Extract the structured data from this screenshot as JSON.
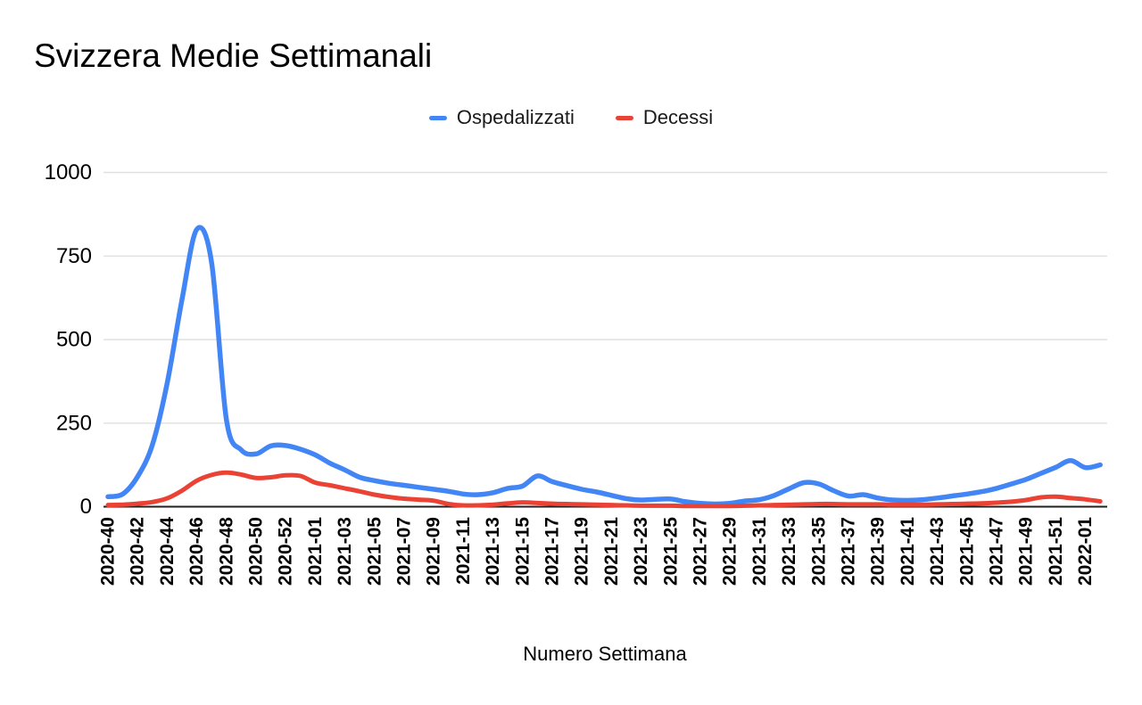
{
  "chart": {
    "title": "Svizzera Medie Settimanali",
    "legend": [
      {
        "label": "Ospedalizzati",
        "color": "#4285F4"
      },
      {
        "label": "Decessi",
        "color": "#EA4335"
      }
    ]
  },
  "chart_data": {
    "type": "line",
    "title": "Svizzera Medie Settimanali",
    "xlabel": "Numero Settimana",
    "ylabel": "",
    "ylim": [
      0,
      1000
    ],
    "y_ticks": [
      0,
      250,
      500,
      750,
      1000
    ],
    "x_label_every": 2,
    "smooth": true,
    "grid": "horizontal",
    "legend_position": "top-center",
    "axis_color": "#212121",
    "gridline_color": "#e0e0e0",
    "categories": [
      "2020-40",
      "2020-41",
      "2020-42",
      "2020-43",
      "2020-44",
      "2020-45",
      "2020-46",
      "2020-47",
      "2020-48",
      "2020-49",
      "2020-50",
      "2020-51",
      "2020-52",
      "2020-53",
      "2021-01",
      "2021-02",
      "2021-03",
      "2021-04",
      "2021-05",
      "2021-06",
      "2021-07",
      "2021-08",
      "2021-09",
      "2021-10",
      "2021-11",
      "2021-12",
      "2021-13",
      "2021-14",
      "2021-15",
      "2021-16",
      "2021-17",
      "2021-18",
      "2021-19",
      "2021-20",
      "2021-21",
      "2021-22",
      "2021-23",
      "2021-24",
      "2021-25",
      "2021-26",
      "2021-27",
      "2021-28",
      "2021-29",
      "2021-30",
      "2021-31",
      "2021-32",
      "2021-33",
      "2021-34",
      "2021-35",
      "2021-36",
      "2021-37",
      "2021-38",
      "2021-39",
      "2021-40",
      "2021-41",
      "2021-42",
      "2021-43",
      "2021-44",
      "2021-45",
      "2021-46",
      "2021-47",
      "2021-48",
      "2021-49",
      "2021-50",
      "2021-51",
      "2021-52",
      "2022-01",
      "2022-02"
    ],
    "series": [
      {
        "name": "Ospedalizzati",
        "color": "#4285F4",
        "stroke_width": 5.5,
        "values": [
          30,
          38,
          90,
          185,
          370,
          620,
          830,
          730,
          260,
          170,
          158,
          182,
          183,
          172,
          155,
          130,
          110,
          88,
          78,
          70,
          64,
          58,
          52,
          46,
          38,
          36,
          42,
          55,
          62,
          92,
          75,
          63,
          52,
          44,
          34,
          24,
          20,
          22,
          23,
          15,
          10,
          8,
          10,
          17,
          21,
          34,
          54,
          72,
          68,
          48,
          32,
          36,
          26,
          20,
          19,
          21,
          26,
          32,
          38,
          45,
          55,
          68,
          82,
          100,
          118,
          138,
          117,
          125
        ]
      },
      {
        "name": "Decessi",
        "color": "#EA4335",
        "stroke_width": 5,
        "values": [
          5,
          6,
          9,
          14,
          25,
          48,
          78,
          95,
          102,
          96,
          86,
          88,
          94,
          92,
          72,
          64,
          55,
          46,
          36,
          29,
          24,
          21,
          18,
          8,
          4,
          4,
          6,
          10,
          13,
          11,
          9,
          8,
          7,
          6,
          5,
          4,
          3,
          3,
          3,
          2,
          2,
          2,
          2,
          3,
          4,
          5,
          6,
          7,
          8,
          8,
          7,
          7,
          7,
          6,
          6,
          6,
          7,
          8,
          9,
          10,
          12,
          15,
          20,
          28,
          30,
          26,
          22,
          16
        ]
      }
    ]
  }
}
